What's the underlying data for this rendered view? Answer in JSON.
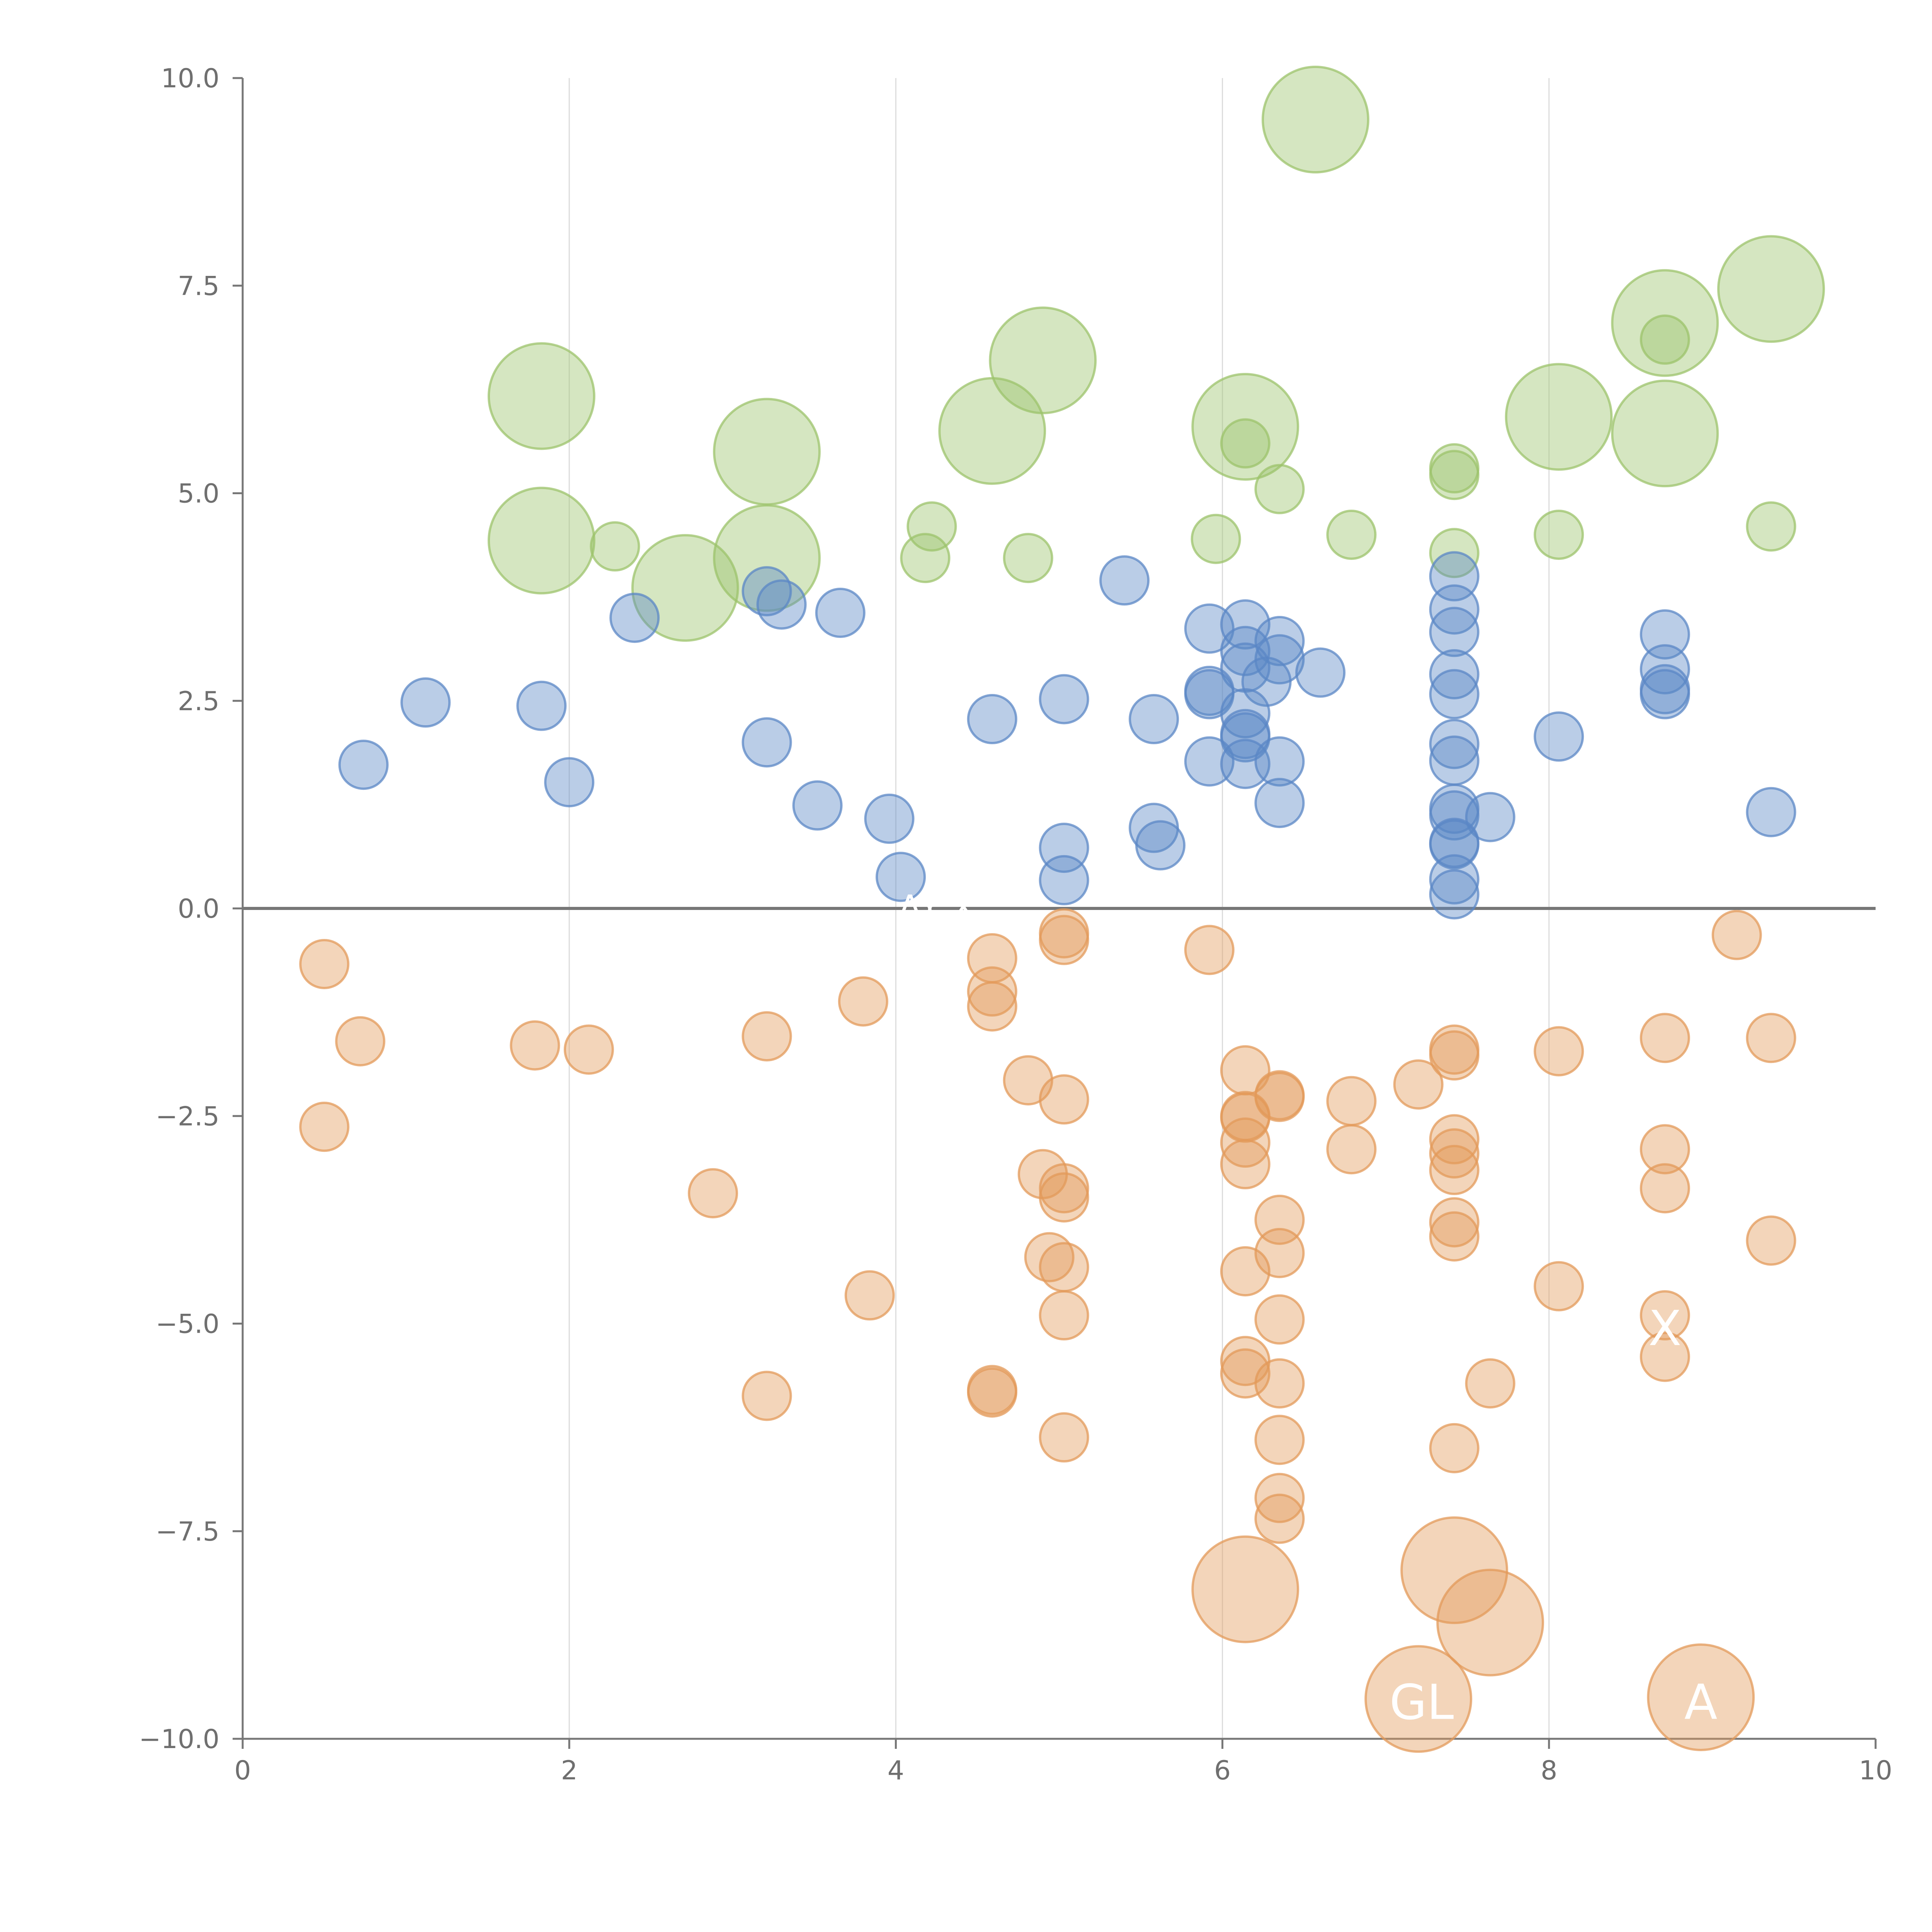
{
  "chart_data": {
    "type": "scatter",
    "title": "",
    "xlabel": "",
    "ylabel": "",
    "xlim": [
      0,
      10
    ],
    "ylim": [
      -10,
      10
    ],
    "grid": "vertical",
    "zero_line": true,
    "x_ticks": [
      0,
      2,
      4,
      6,
      8,
      10
    ],
    "x_tick_labels": [
      "0",
      "2",
      "4",
      "6",
      "8",
      "10"
    ],
    "y_ticks": [
      10,
      7.5,
      5,
      2.5,
      0,
      -2.5,
      -5,
      -7.5,
      -10
    ],
    "y_tick_labels": [
      "10.0",
      "7.5",
      "5.0",
      "2.5",
      "0.0",
      "−2.5",
      "−5.0",
      "−7.5",
      "−10.0"
    ],
    "colors": {
      "green": "#9cc36b",
      "blue": "#5b87c6",
      "orange": "#e39a5a",
      "axis": "#777777",
      "grid": "#dcdcdc",
      "tick_text": "#6f6f6f"
    },
    "series": [
      {
        "name": "green",
        "color": "#9cc36b",
        "points": [
          [
            6.57,
            9.5,
            22
          ],
          [
            9.36,
            7.46,
            22
          ],
          [
            8.71,
            7.05,
            22
          ],
          [
            8.71,
            6.85,
            10
          ],
          [
            4.9,
            6.6,
            22
          ],
          [
            1.83,
            6.17,
            22
          ],
          [
            6.14,
            5.8,
            22
          ],
          [
            8.06,
            5.92,
            22
          ],
          [
            8.71,
            5.72,
            22
          ],
          [
            4.59,
            5.75,
            22
          ],
          [
            3.21,
            5.5,
            22
          ],
          [
            6.14,
            5.6,
            10
          ],
          [
            7.42,
            5.3,
            10
          ],
          [
            7.42,
            5.22,
            10
          ],
          [
            6.35,
            5.05,
            10
          ],
          [
            4.22,
            4.6,
            10
          ],
          [
            9.36,
            4.6,
            10
          ],
          [
            1.83,
            4.43,
            22
          ],
          [
            2.28,
            4.36,
            10
          ],
          [
            5.96,
            4.45,
            10
          ],
          [
            6.79,
            4.5,
            10
          ],
          [
            8.06,
            4.5,
            10
          ],
          [
            7.42,
            4.28,
            10
          ],
          [
            3.21,
            4.22,
            22
          ],
          [
            4.18,
            4.22,
            10
          ],
          [
            4.81,
            4.22,
            10
          ],
          [
            2.71,
            3.86,
            22
          ]
        ]
      },
      {
        "name": "blue",
        "color": "#5b87c6",
        "points": [
          [
            7.42,
            4.0,
            10
          ],
          [
            5.4,
            3.95,
            10
          ],
          [
            3.21,
            3.82,
            10
          ],
          [
            3.3,
            3.66,
            10
          ],
          [
            3.66,
            3.56,
            10
          ],
          [
            7.42,
            3.6,
            10
          ],
          [
            2.4,
            3.5,
            10
          ],
          [
            5.92,
            3.37,
            10
          ],
          [
            6.14,
            3.42,
            10
          ],
          [
            7.42,
            3.33,
            10
          ],
          [
            8.71,
            3.3,
            10
          ],
          [
            6.35,
            3.22,
            10
          ],
          [
            6.14,
            3.1,
            10
          ],
          [
            6.35,
            3.0,
            10
          ],
          [
            6.14,
            2.9,
            10
          ],
          [
            8.71,
            2.88,
            10
          ],
          [
            6.6,
            2.84,
            10
          ],
          [
            7.42,
            2.82,
            10
          ],
          [
            6.27,
            2.73,
            10
          ],
          [
            8.71,
            2.64,
            10
          ],
          [
            8.71,
            2.58,
            10
          ],
          [
            5.92,
            2.62,
            10
          ],
          [
            5.92,
            2.58,
            10
          ],
          [
            7.42,
            2.58,
            10
          ],
          [
            5.03,
            2.52,
            10
          ],
          [
            1.12,
            2.48,
            10
          ],
          [
            1.83,
            2.44,
            10
          ],
          [
            6.14,
            2.35,
            10
          ],
          [
            4.59,
            2.28,
            10
          ],
          [
            5.58,
            2.28,
            10
          ],
          [
            6.14,
            2.1,
            10
          ],
          [
            6.14,
            2.06,
            10
          ],
          [
            8.06,
            2.07,
            10
          ],
          [
            3.21,
            2.0,
            10
          ],
          [
            7.42,
            1.98,
            10
          ],
          [
            0.74,
            1.73,
            10
          ],
          [
            5.92,
            1.77,
            10
          ],
          [
            6.14,
            1.74,
            10
          ],
          [
            6.35,
            1.77,
            10
          ],
          [
            7.42,
            1.78,
            10
          ],
          [
            2.0,
            1.52,
            10
          ],
          [
            6.35,
            1.27,
            10
          ],
          [
            3.52,
            1.24,
            10
          ],
          [
            9.36,
            1.16,
            10
          ],
          [
            7.42,
            1.2,
            10
          ],
          [
            7.42,
            1.12,
            10
          ],
          [
            7.64,
            1.1,
            10
          ],
          [
            3.96,
            1.08,
            10
          ],
          [
            5.58,
            0.97,
            10
          ],
          [
            7.42,
            0.79,
            10
          ],
          [
            7.42,
            0.77,
            10
          ],
          [
            5.03,
            0.73,
            10
          ],
          [
            5.62,
            0.76,
            10
          ],
          [
            4.03,
            0.38,
            10
          ],
          [
            5.03,
            0.34,
            10
          ],
          [
            7.42,
            0.35,
            10
          ],
          [
            7.42,
            0.17,
            10
          ]
        ]
      },
      {
        "name": "orange",
        "color": "#e39a5a",
        "points": [
          [
            5.03,
            -0.3,
            10
          ],
          [
            5.03,
            -0.38,
            10
          ],
          [
            9.15,
            -0.32,
            10
          ],
          [
            5.92,
            -0.5,
            10
          ],
          [
            4.59,
            -0.6,
            10
          ],
          [
            0.5,
            -0.67,
            10
          ],
          [
            4.59,
            -1.0,
            10
          ],
          [
            3.8,
            -1.12,
            10
          ],
          [
            4.59,
            -1.18,
            10
          ],
          [
            3.21,
            -1.54,
            10
          ],
          [
            8.71,
            -1.56,
            10
          ],
          [
            9.36,
            -1.56,
            10
          ],
          [
            0.72,
            -1.6,
            10
          ],
          [
            1.79,
            -1.65,
            10
          ],
          [
            2.12,
            -1.7,
            10
          ],
          [
            7.42,
            -1.7,
            10
          ],
          [
            7.42,
            -1.77,
            10
          ],
          [
            8.06,
            -1.72,
            10
          ],
          [
            6.14,
            -1.95,
            10
          ],
          [
            4.81,
            -2.07,
            10
          ],
          [
            7.2,
            -2.12,
            10
          ],
          [
            6.35,
            -2.25,
            10
          ],
          [
            6.35,
            -2.27,
            10
          ],
          [
            5.03,
            -2.3,
            10
          ],
          [
            6.79,
            -2.32,
            10
          ],
          [
            6.14,
            -2.5,
            10
          ],
          [
            6.14,
            -2.52,
            10
          ],
          [
            0.5,
            -2.63,
            10
          ],
          [
            7.42,
            -2.78,
            10
          ],
          [
            6.14,
            -2.82,
            10
          ],
          [
            6.79,
            -2.9,
            10
          ],
          [
            8.71,
            -2.9,
            10
          ],
          [
            7.42,
            -2.95,
            10
          ],
          [
            6.14,
            -3.08,
            10
          ],
          [
            7.42,
            -3.15,
            10
          ],
          [
            4.9,
            -3.2,
            10
          ],
          [
            5.03,
            -3.37,
            10
          ],
          [
            8.71,
            -3.37,
            10
          ],
          [
            2.88,
            -3.43,
            10
          ],
          [
            5.03,
            -3.48,
            10
          ],
          [
            6.35,
            -3.75,
            10
          ],
          [
            7.42,
            -3.78,
            10
          ],
          [
            7.42,
            -3.95,
            10
          ],
          [
            9.36,
            -4.0,
            10
          ],
          [
            6.35,
            -4.15,
            10
          ],
          [
            4.94,
            -4.2,
            10
          ],
          [
            5.03,
            -4.32,
            10
          ],
          [
            6.14,
            -4.37,
            10
          ],
          [
            8.06,
            -4.55,
            10
          ],
          [
            3.84,
            -4.66,
            10
          ],
          [
            5.03,
            -4.9,
            10
          ],
          [
            6.35,
            -4.95,
            10
          ],
          [
            8.71,
            -4.9,
            10
          ],
          [
            8.71,
            -5.4,
            10
          ],
          [
            6.14,
            -5.45,
            10
          ],
          [
            6.14,
            -5.6,
            10
          ],
          [
            6.35,
            -5.72,
            10
          ],
          [
            7.64,
            -5.72,
            10
          ],
          [
            4.59,
            -5.8,
            10
          ],
          [
            4.59,
            -5.83,
            10
          ],
          [
            3.21,
            -5.87,
            10
          ],
          [
            5.03,
            -6.37,
            10
          ],
          [
            6.35,
            -6.4,
            10
          ],
          [
            7.42,
            -6.5,
            10
          ],
          [
            6.35,
            -7.1,
            10
          ],
          [
            6.35,
            -7.35,
            10
          ],
          [
            7.42,
            -7.97,
            22
          ],
          [
            6.14,
            -8.2,
            22
          ],
          [
            7.64,
            -8.6,
            22
          ],
          [
            7.2,
            -9.52,
            22
          ],
          [
            8.93,
            -9.5,
            22
          ]
        ]
      }
    ],
    "annotations": [
      {
        "text": "GL",
        "x": 7.22,
        "y": -9.55
      },
      {
        "text": "A",
        "x": 8.93,
        "y": -9.55
      },
      {
        "text": "X",
        "x": 8.71,
        "y": -5.05
      },
      {
        "text": "AY X",
        "x": 4.25,
        "y": 0.0
      }
    ]
  }
}
